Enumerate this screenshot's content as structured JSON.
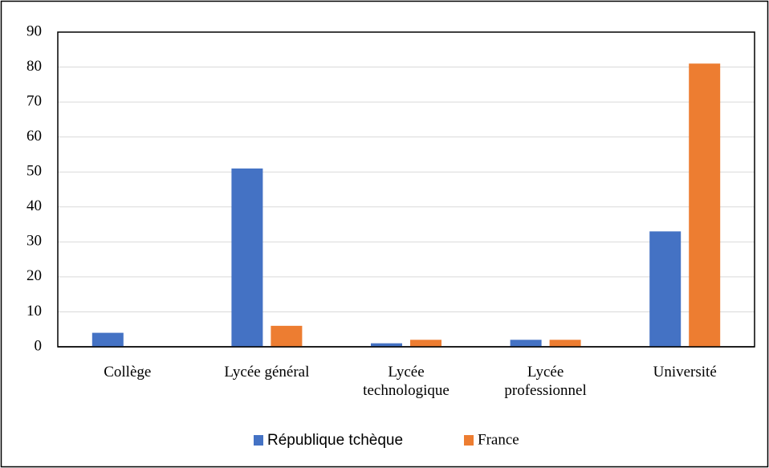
{
  "chart_data": {
    "type": "bar",
    "categories": [
      "Collège",
      "Lycée général",
      "Lycée technologique",
      "Lycée professionnel",
      "Université"
    ],
    "series": [
      {
        "name": "République tchèque",
        "color": "#4472c4",
        "values": [
          4,
          51,
          1,
          2,
          33
        ]
      },
      {
        "name": "France",
        "color": "#ed7d31",
        "values": [
          0,
          6,
          2,
          2,
          81
        ]
      }
    ],
    "ylim": [
      0,
      90
    ],
    "yticks": [
      0,
      10,
      20,
      30,
      40,
      50,
      60,
      70,
      80,
      90
    ],
    "grid": true,
    "legend": "bottom"
  }
}
